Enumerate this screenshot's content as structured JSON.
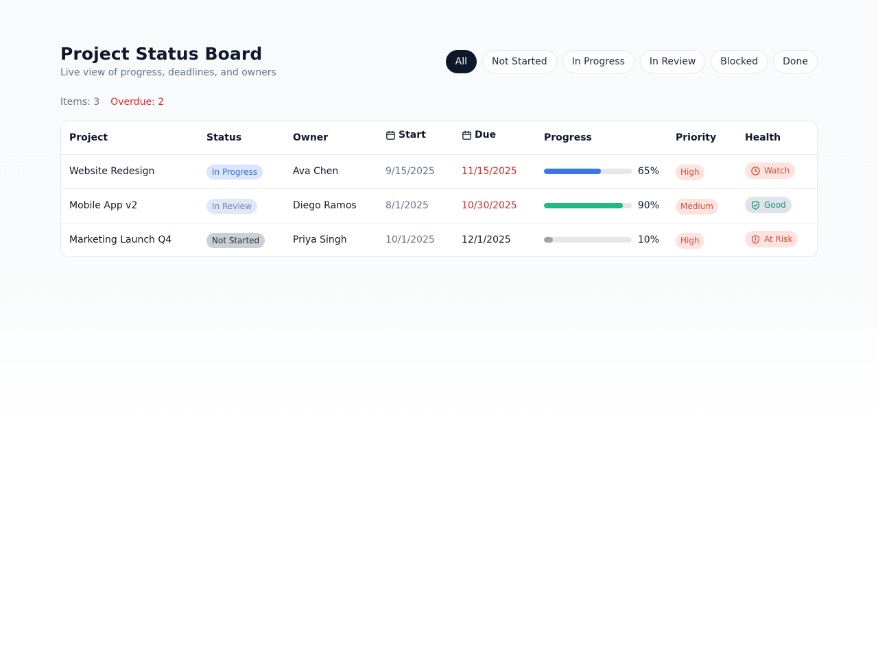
{
  "header": {
    "title": "Project Status Board",
    "subtitle": "Live view of progress, deadlines, and owners"
  },
  "filters": [
    {
      "label": "All",
      "active": true
    },
    {
      "label": "Not Started",
      "active": false
    },
    {
      "label": "In Progress",
      "active": false
    },
    {
      "label": "In Review",
      "active": false
    },
    {
      "label": "Blocked",
      "active": false
    },
    {
      "label": "Done",
      "active": false
    }
  ],
  "counts": {
    "items": "Items: 3",
    "overdue": "Overdue: 2"
  },
  "table": {
    "columns": {
      "project": "Project",
      "status": "Status",
      "owner": "Owner",
      "start": "Start",
      "due": "Due",
      "progress": "Progress",
      "priority": "Priority",
      "health": "Health"
    },
    "rows": [
      {
        "project": "Website Redesign",
        "status": "In Progress",
        "owner": "Ava Chen",
        "start": "9/15/2025",
        "due": "11/15/2025",
        "due_overdue": true,
        "progress": 65,
        "progress_label": "65%",
        "progress_color": "#3b76e1",
        "priority": "High",
        "health": "Watch",
        "health_icon": "clock-icon"
      },
      {
        "project": "Mobile App v2",
        "status": "In Review",
        "owner": "Diego Ramos",
        "start": "8/1/2025",
        "due": "10/30/2025",
        "due_overdue": true,
        "progress": 90,
        "progress_label": "90%",
        "progress_color": "#1fb982",
        "priority": "Medium",
        "health": "Good",
        "health_icon": "shield-check-icon"
      },
      {
        "project": "Marketing Launch Q4",
        "status": "Not Started",
        "owner": "Priya Singh",
        "start": "10/1/2025",
        "due": "12/1/2025",
        "due_overdue": false,
        "progress": 10,
        "progress_label": "10%",
        "progress_color": "#9ca3af",
        "priority": "High",
        "health": "At Risk",
        "health_icon": "shield-alert-icon"
      }
    ]
  }
}
